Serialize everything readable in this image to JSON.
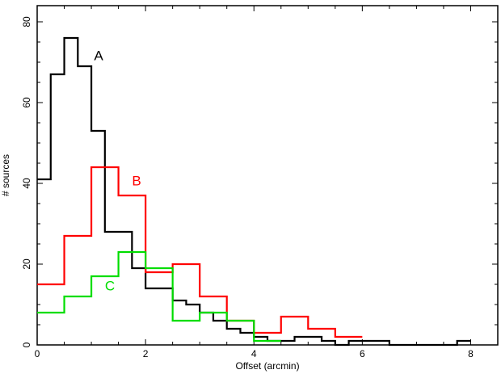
{
  "chart_data": {
    "type": "line",
    "style": "step-histogram",
    "xlabel": "Offset (arcmin)",
    "ylabel": "# sources",
    "xlim": [
      0,
      8.5
    ],
    "ylim": [
      0,
      84
    ],
    "x_ticks": [
      0,
      2,
      4,
      6,
      8
    ],
    "y_ticks": [
      0,
      20,
      40,
      60,
      80
    ],
    "grid": false,
    "series": [
      {
        "name": "A",
        "color": "#000000",
        "bin_edges": [
          0,
          0.25,
          0.5,
          0.75,
          1.0,
          1.25,
          1.5,
          1.75,
          2.0,
          2.25,
          2.5,
          2.75,
          3.0,
          3.25,
          3.5,
          3.75,
          4.0,
          4.25,
          4.5,
          4.75,
          5.0,
          5.25,
          5.5,
          5.75,
          6.0,
          6.25,
          6.5,
          6.75,
          7.0,
          7.25,
          7.5,
          7.75,
          8.0
        ],
        "values": [
          41,
          67,
          76,
          69,
          53,
          28,
          28,
          19,
          14,
          14,
          11,
          10,
          8,
          6,
          4,
          3,
          2,
          1,
          1,
          2,
          2,
          1,
          0,
          1,
          1,
          1,
          0,
          0,
          0,
          0,
          0,
          1
        ]
      },
      {
        "name": "B",
        "color": "#ff0000",
        "bin_edges": [
          0,
          0.5,
          1.0,
          1.5,
          2.0,
          2.5,
          3.0,
          3.5,
          4.0,
          4.5,
          5.0,
          5.5,
          6.0
        ],
        "values": [
          15,
          27,
          44,
          37,
          18,
          20,
          12,
          6,
          3,
          7,
          4,
          2
        ]
      },
      {
        "name": "C",
        "color": "#00dd00",
        "bin_edges": [
          0,
          0.5,
          1.0,
          1.5,
          2.0,
          2.5,
          3.0,
          3.5,
          4.0,
          4.5
        ],
        "values": [
          8,
          12,
          17,
          23,
          19,
          6,
          8,
          6,
          1
        ]
      }
    ],
    "annotations": [
      {
        "text": "A",
        "x": 1.05,
        "y": 70.5,
        "color": "#000000"
      },
      {
        "text": "B",
        "x": 1.75,
        "y": 39.5,
        "color": "#ff0000"
      },
      {
        "text": "C",
        "x": 1.25,
        "y": 13.5,
        "color": "#00dd00"
      }
    ]
  }
}
